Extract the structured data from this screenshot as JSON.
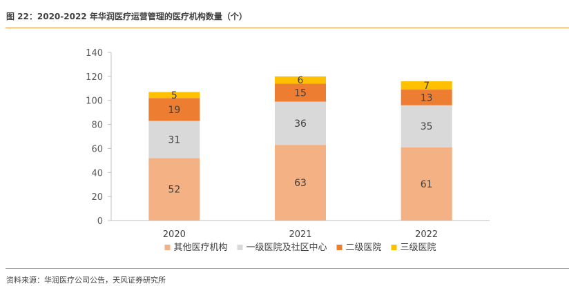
{
  "figure": {
    "title": "图 22：2020-2022 年华润医疗运营管理的医疗机构数量（个）",
    "source": "资料来源：华润医疗公司公告，天风证券研究所"
  },
  "chart_data": {
    "type": "bar",
    "stacked": true,
    "categories": [
      "2020",
      "2021",
      "2022"
    ],
    "series": [
      {
        "name": "其他医疗机构",
        "color": "#f4b183",
        "values": [
          52,
          63,
          61
        ]
      },
      {
        "name": "一级医院及社区中心",
        "color": "#d9d9d9",
        "values": [
          31,
          36,
          35
        ]
      },
      {
        "name": "二级医院",
        "color": "#ed7d31",
        "values": [
          19,
          15,
          13
        ]
      },
      {
        "name": "三级医院",
        "color": "#ffc000",
        "values": [
          5,
          6,
          7
        ]
      }
    ],
    "ylim": [
      0,
      140
    ],
    "yticks": [
      0,
      20,
      40,
      60,
      80,
      100,
      120,
      140
    ],
    "grid": false,
    "legend": "bottom"
  }
}
